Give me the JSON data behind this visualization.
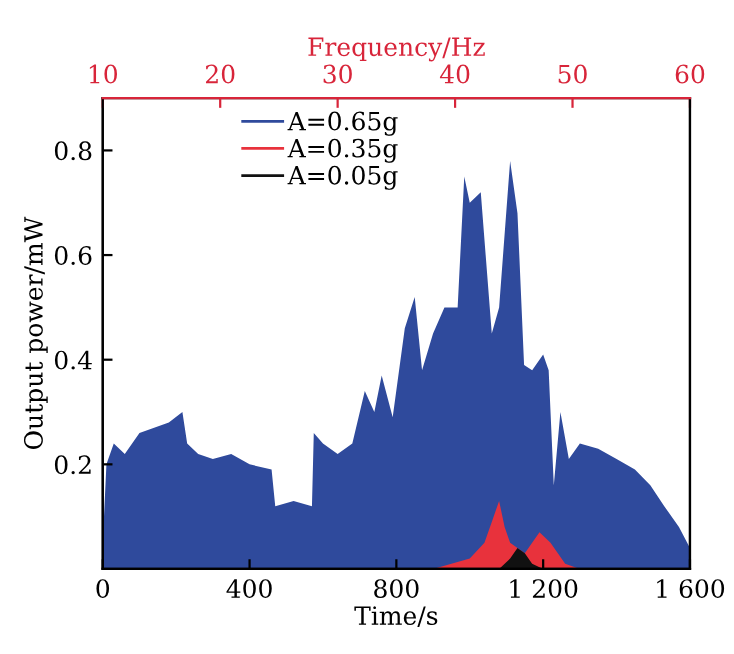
{
  "chart_data": {
    "type": "area",
    "xlabel": "Time/s",
    "ylabel": "Output power/mW",
    "x2label": "Frequency/Hz",
    "xlim": [
      0,
      1600
    ],
    "xticks": [
      0,
      400,
      800,
      {
        "value": 1200,
        "label": "1 200"
      },
      {
        "value": 1600,
        "label": "1 600"
      }
    ],
    "ylim": [
      0,
      0.9
    ],
    "yticks": [
      0.2,
      0.4,
      0.6,
      0.8
    ],
    "x2lim": [
      10,
      60
    ],
    "x2ticks": [
      10,
      20,
      30,
      40,
      50,
      60
    ],
    "legend": "top left",
    "grid": false,
    "series": [
      {
        "name": "A=0.65g",
        "color": "#2f4a9c",
        "x": [
          0,
          10,
          30,
          60,
          100,
          140,
          180,
          217,
          230,
          260,
          300,
          350,
          400,
          460,
          470,
          520,
          570,
          575,
          600,
          640,
          680,
          714,
          740,
          760,
          790,
          823,
          850,
          870,
          900,
          931,
          967,
          985,
          1000,
          1030,
          1060,
          1080,
          1110,
          1130,
          1148,
          1170,
          1200,
          1215,
          1229,
          1247,
          1270,
          1300,
          1350,
          1400,
          1450,
          1492,
          1530,
          1570,
          1600
        ],
        "values": [
          0.05,
          0.2,
          0.24,
          0.22,
          0.26,
          0.27,
          0.28,
          0.3,
          0.24,
          0.22,
          0.21,
          0.22,
          0.2,
          0.19,
          0.12,
          0.13,
          0.12,
          0.26,
          0.24,
          0.22,
          0.24,
          0.34,
          0.3,
          0.37,
          0.29,
          0.46,
          0.52,
          0.38,
          0.45,
          0.5,
          0.5,
          0.75,
          0.7,
          0.72,
          0.45,
          0.5,
          0.78,
          0.68,
          0.39,
          0.38,
          0.41,
          0.38,
          0.16,
          0.3,
          0.21,
          0.24,
          0.23,
          0.21,
          0.19,
          0.16,
          0.12,
          0.08,
          0.04
        ]
      },
      {
        "name": "A=0.35g",
        "color": "#e8323c",
        "x": [
          0,
          900,
          950,
          1000,
          1040,
          1060,
          1080,
          1095,
          1110,
          1150,
          1190,
          1205,
          1220,
          1260,
          1300,
          1600
        ],
        "values": [
          0,
          0,
          0.01,
          0.02,
          0.05,
          0.09,
          0.13,
          0.08,
          0.05,
          0.03,
          0.07,
          0.06,
          0.05,
          0.01,
          0,
          0
        ]
      },
      {
        "name": "A=0.05g",
        "color": "#111111",
        "x": [
          0,
          1080,
          1110,
          1130,
          1150,
          1170,
          1200,
          1600
        ],
        "values": [
          0,
          0,
          0.02,
          0.04,
          0.03,
          0.01,
          0,
          0
        ]
      }
    ]
  }
}
